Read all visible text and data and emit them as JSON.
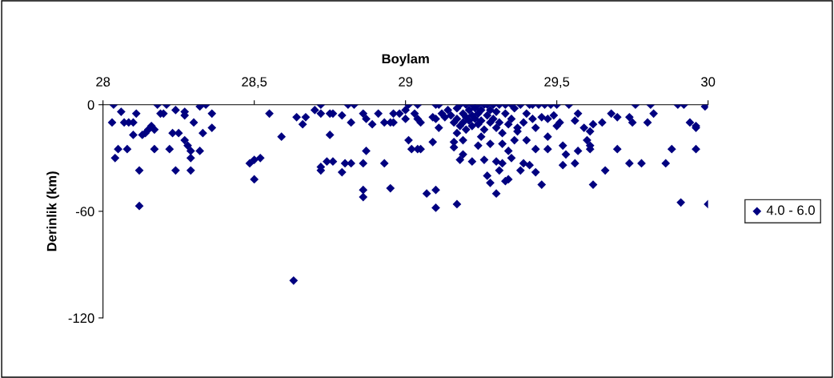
{
  "chart_data": {
    "type": "scatter",
    "xlabel": "Boylam",
    "ylabel": "Derinlik (km)",
    "xlim": [
      28,
      30
    ],
    "xticks": [
      28,
      {
        "value": 28.5,
        "label": "28,5"
      },
      29,
      {
        "value": 29.5,
        "label": "29,5"
      },
      30
    ],
    "ylim": [
      -120,
      0
    ],
    "yticks": [
      0,
      -60,
      -120
    ],
    "marker": "diamond",
    "grid": false,
    "legend": "right",
    "series": [
      {
        "name": "4.0 - 6.0",
        "color": "#000080",
        "x": [
          28.035,
          28.03,
          28.06,
          28.07,
          28.085,
          28.1,
          28.11,
          28.05,
          28.04,
          28.08,
          28.1,
          28.12,
          28.12,
          28.13,
          28.14,
          28.15,
          28.16,
          28.17,
          28.17,
          28.18,
          28.19,
          28.21,
          28.2,
          28.22,
          28.23,
          28.24,
          28.24,
          28.25,
          28.27,
          28.27,
          28.27,
          28.28,
          28.29,
          28.29,
          28.3,
          28.29,
          28.32,
          28.32,
          28.34,
          28.33,
          28.36,
          28.36,
          28.485,
          28.5,
          28.52,
          28.5,
          28.55,
          28.59,
          28.63,
          28.64,
          28.66,
          28.67,
          28.7,
          28.72,
          28.72,
          28.72,
          28.72,
          28.74,
          28.75,
          28.75,
          28.76,
          28.76,
          28.79,
          28.79,
          28.8,
          28.81,
          28.82,
          28.82,
          28.83,
          28.86,
          28.86,
          28.86,
          28.86,
          28.87,
          28.87,
          28.89,
          28.91,
          28.93,
          28.93,
          28.95,
          28.95,
          28.96,
          28.96,
          28.98,
          29.0,
          29.0,
          29.01,
          29.01,
          29.02,
          29.03,
          29.04,
          29.04,
          29.04,
          29.05,
          29.05,
          29.07,
          29.09,
          29.09,
          29.1,
          29.1,
          29.1,
          29.1,
          29.11,
          29.11,
          29.12,
          29.13,
          29.17,
          29.16,
          29.16,
          29.17,
          29.18,
          29.19,
          29.19,
          29.22,
          29.24,
          29.25,
          29.26,
          29.27,
          29.28,
          29.28,
          29.3,
          29.3,
          29.31,
          29.32,
          29.32,
          29.33,
          29.34,
          29.34,
          29.35,
          29.36,
          29.37,
          29.38,
          29.39,
          29.4,
          29.41,
          29.43,
          29.43,
          29.45,
          29.47,
          29.47,
          29.14,
          29.15,
          29.16,
          29.17,
          29.17,
          29.18,
          29.18,
          29.19,
          29.19,
          29.2,
          29.2,
          29.2,
          29.21,
          29.21,
          29.22,
          29.22,
          29.22,
          29.23,
          29.23,
          29.24,
          29.24,
          29.24,
          29.25,
          29.25,
          29.26,
          29.26,
          29.27,
          29.27,
          29.28,
          29.28,
          29.29,
          29.29,
          29.3,
          29.3,
          29.31,
          29.31,
          29.32,
          29.33,
          29.33,
          29.34,
          29.35,
          29.35,
          29.36,
          29.37,
          29.38,
          29.39,
          29.4,
          29.41,
          29.42,
          29.42,
          29.43,
          29.44,
          29.45,
          29.46,
          29.47,
          29.48,
          29.49,
          29.5,
          29.5,
          29.51,
          29.54,
          29.57,
          29.56,
          29.52,
          29.53,
          29.52,
          29.56,
          29.57,
          29.59,
          29.6,
          29.61,
          29.61,
          29.61,
          29.62,
          29.62,
          29.65,
          29.66,
          29.68,
          29.7,
          29.7,
          29.74,
          29.74,
          29.75,
          29.76,
          29.78,
          29.8,
          29.81,
          29.82,
          29.86,
          29.88,
          29.9,
          29.92,
          29.91,
          29.94,
          29.96,
          29.96,
          29.96,
          29.99,
          30.0
        ],
        "values": [
          0,
          -10,
          -4,
          -10,
          -10,
          -10,
          -5,
          -25,
          -30,
          -25,
          -17,
          -37,
          -57,
          -17,
          -16,
          -14,
          -12,
          -14,
          -25,
          0,
          -5,
          0,
          -5,
          -25,
          -16,
          -3,
          -37,
          -16,
          -4,
          -6,
          -20,
          -23,
          -30,
          -37,
          -10,
          -26,
          -1,
          -26,
          0,
          -16,
          -5,
          -13,
          -33,
          -31,
          -30,
          -42,
          -5,
          -18,
          -99,
          -7,
          -11,
          -7,
          -3,
          -35,
          -37,
          0,
          -5,
          -32,
          -17,
          -5,
          -5,
          -32,
          -38,
          -6,
          -33,
          0,
          -10,
          -33,
          0,
          -5,
          -33,
          -48,
          -52,
          -26,
          -8,
          -11,
          -5,
          -33,
          -10,
          -47,
          -10,
          -10,
          -5,
          -5,
          -3,
          -8,
          0,
          -20,
          -25,
          -5,
          0,
          -8,
          -25,
          -10,
          -25,
          -50,
          -21,
          -7,
          -48,
          -58,
          0,
          -8,
          -13,
          0,
          -5,
          -7,
          -56,
          -24,
          -21,
          -16,
          -31,
          -20,
          -28,
          -32,
          -23,
          -18,
          -31,
          -40,
          -44,
          -22,
          -50,
          -32,
          -37,
          -33,
          -22,
          -43,
          -42,
          -26,
          -30,
          -20,
          -15,
          -37,
          -33,
          -20,
          -34,
          -38,
          -25,
          -45,
          -18,
          -25,
          -3,
          -6,
          -10,
          -2,
          -8,
          -12,
          0,
          -5,
          -10,
          0,
          -7,
          -14,
          -3,
          -9,
          0,
          -6,
          -12,
          -2,
          -8,
          0,
          -5,
          -11,
          -3,
          -9,
          0,
          -14,
          -6,
          0,
          -10,
          -3,
          0,
          -8,
          -13,
          -4,
          0,
          -10,
          -16,
          -5,
          0,
          -11,
          0,
          -8,
          -2,
          -13,
          0,
          -10,
          -5,
          0,
          0,
          -8,
          -13,
          0,
          -7,
          0,
          -8,
          0,
          -6,
          0,
          -12,
          -10,
          0,
          -5,
          -9,
          -23,
          -28,
          -34,
          -33,
          -26,
          -13,
          -20,
          -23,
          -25,
          -15,
          -11,
          -45,
          -10,
          -37,
          -5,
          -25,
          -7,
          -7,
          -33,
          -10,
          0,
          -33,
          -10,
          0,
          -5,
          -33,
          -25,
          0,
          0,
          -55,
          -10,
          -12,
          -13,
          -25,
          -1,
          -56
        ]
      }
    ]
  }
}
